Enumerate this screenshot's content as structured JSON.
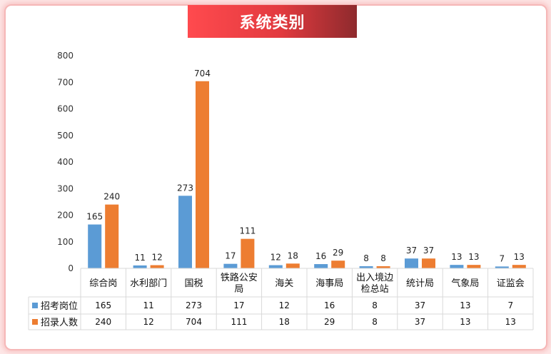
{
  "chart_data": {
    "type": "bar",
    "title": "系统类别",
    "categories": [
      [
        "综合岗"
      ],
      [
        "水利部门"
      ],
      [
        "国税"
      ],
      [
        "铁路公安",
        "局"
      ],
      [
        "海关"
      ],
      [
        "海事局"
      ],
      [
        "出入境边",
        "检总站"
      ],
      [
        "统计局"
      ],
      [
        "气象局"
      ],
      [
        "证监会"
      ]
    ],
    "series": [
      {
        "name": "招考岗位",
        "values": [
          165,
          11,
          273,
          17,
          12,
          16,
          8,
          37,
          13,
          7
        ],
        "color": "#5b9bd5"
      },
      {
        "name": "招录人数",
        "values": [
          240,
          12,
          704,
          111,
          18,
          29,
          8,
          37,
          13,
          13
        ],
        "color": "#ed7d31"
      }
    ],
    "ylim": [
      0,
      800
    ],
    "yticks": [
      0,
      100,
      200,
      300,
      400,
      500,
      600,
      700,
      800
    ],
    "grid": false,
    "legend": "data-table"
  }
}
